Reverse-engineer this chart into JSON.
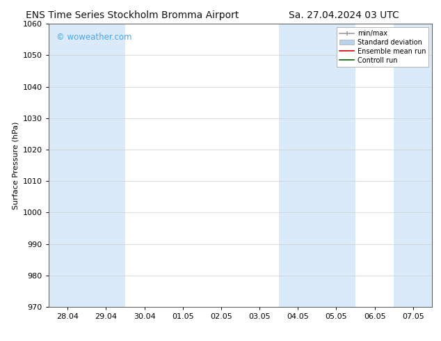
{
  "title_left": "ENS Time Series Stockholm Bromma Airport",
  "title_right": "Sa. 27.04.2024 03 UTC",
  "ylabel": "Surface Pressure (hPa)",
  "ylim": [
    970,
    1060
  ],
  "yticks": [
    970,
    980,
    990,
    1000,
    1010,
    1020,
    1030,
    1040,
    1050,
    1060
  ],
  "xtick_labels": [
    "28.04",
    "29.04",
    "30.04",
    "01.05",
    "02.05",
    "03.05",
    "04.05",
    "05.05",
    "06.05",
    "07.05"
  ],
  "watermark": "© woweather.com",
  "watermark_color": "#4da6e8",
  "bg_color": "#ffffff",
  "plot_bg_color": "#ffffff",
  "shaded_band_color": "#daeaf8",
  "legend_entries": [
    "min/max",
    "Standard deviation",
    "Ensemble mean run",
    "Controll run"
  ],
  "legend_colors_line": [
    "#999999",
    "#b8d4ec",
    "#cc0000",
    "#006400"
  ],
  "title_fontsize": 10,
  "axis_label_fontsize": 8,
  "tick_fontsize": 8
}
